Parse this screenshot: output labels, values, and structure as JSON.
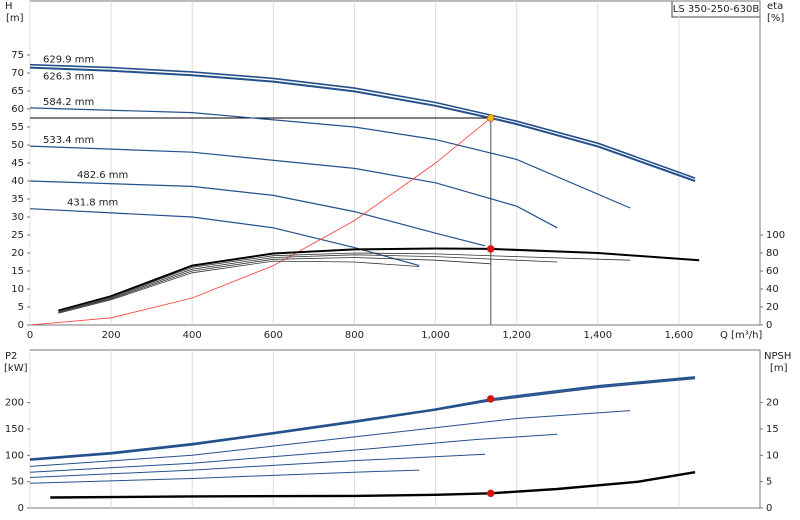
{
  "chart_data": [
    {
      "type": "line",
      "title": "LS 350-250-630B",
      "ylabel": "H",
      "yunit": "[m]",
      "y2label": "eta",
      "y2unit": "[%]",
      "xlabel": "Q [m³/h]",
      "xlim": [
        0,
        1800
      ],
      "xticks": [
        0,
        200,
        400,
        600,
        800,
        {
          "value": 1000,
          "label": "1,000"
        },
        {
          "value": 1200,
          "label": "1,200"
        },
        {
          "value": 1400,
          "label": "1,400"
        },
        {
          "value": 1600,
          "label": "1,600"
        }
      ],
      "ylim": [
        0,
        90
      ],
      "yticks": [
        0,
        5,
        10,
        15,
        20,
        25,
        30,
        35,
        40,
        45,
        50,
        55,
        60,
        65,
        70,
        75
      ],
      "y2lim": [
        0,
        360
      ],
      "y2ticks": [
        0,
        20,
        40,
        60,
        80,
        100
      ],
      "grid": "x",
      "series": [
        {
          "name": "629.9 mm",
          "color": "#24508c",
          "width": 1.6,
          "x": [
            0,
            200,
            400,
            600,
            800,
            1000,
            1136,
            1200,
            1400,
            1640
          ],
          "values": [
            72.3,
            71.5,
            70.3,
            68.5,
            65.8,
            61.8,
            58.3,
            56.6,
            50.5,
            40.8
          ]
        },
        {
          "name": "626.3 mm",
          "color": "#24508c",
          "width": 2,
          "x": [
            0,
            200,
            400,
            600,
            800,
            1000,
            1136,
            1200,
            1400,
            1640
          ],
          "values": [
            71.5,
            70.6,
            69.4,
            67.6,
            64.9,
            60.9,
            57.5,
            55.8,
            49.6,
            40
          ]
        },
        {
          "name": "584.2 mm",
          "color": "#24508c",
          "width": 1.2,
          "x": [
            0,
            400,
            800,
            1000,
            1200,
            1480
          ],
          "values": [
            60.3,
            59,
            55,
            51.5,
            46,
            32.5
          ]
        },
        {
          "name": "533.4 mm",
          "color": "#24508c",
          "width": 1.2,
          "x": [
            0,
            400,
            800,
            1000,
            1200,
            1300
          ],
          "values": [
            49.7,
            48,
            43.5,
            39.5,
            33,
            27
          ]
        },
        {
          "name": "482.6 mm",
          "color": "#24508c",
          "width": 1.2,
          "x": [
            0,
            400,
            600,
            800,
            1000,
            1122
          ],
          "values": [
            40,
            38.5,
            36,
            31.5,
            25.5,
            22
          ]
        },
        {
          "name": "431.8 mm",
          "color": "#24508c",
          "width": 1.2,
          "x": [
            0,
            400,
            600,
            800,
            960
          ],
          "values": [
            32.3,
            30,
            27,
            21.5,
            16.5
          ]
        },
        {
          "color": "#ff3b3b",
          "width": 0.8,
          "x": [
            0,
            200,
            400,
            600,
            800,
            1000,
            1136
          ],
          "values": [
            0,
            2,
            7.5,
            16.5,
            29,
            45,
            57.5
          ]
        },
        {
          "axis": "y2",
          "color": "#000000",
          "width": 2,
          "x": [
            70,
            200,
            400,
            600,
            800,
            1000,
            1136,
            1400,
            1650
          ],
          "values": [
            16,
            32,
            66,
            79.4,
            84,
            85,
            84.5,
            80,
            72
          ]
        },
        {
          "axis": "y2",
          "color": "#333333",
          "width": 0.8,
          "x": [
            70,
            200,
            400,
            600,
            800,
            1000,
            1200,
            1480
          ],
          "values": [
            15,
            31,
            64,
            77,
            80,
            79,
            76,
            72
          ]
        },
        {
          "axis": "y2",
          "color": "#333333",
          "width": 0.8,
          "x": [
            70,
            200,
            400,
            600,
            800,
            1000,
            1300
          ],
          "values": [
            14,
            30,
            62,
            75,
            78,
            76,
            70
          ]
        },
        {
          "axis": "y2",
          "color": "#333333",
          "width": 0.8,
          "x": [
            70,
            200,
            400,
            600,
            800,
            1000,
            1136
          ],
          "values": [
            14,
            29,
            60,
            73,
            75,
            72,
            68
          ]
        },
        {
          "axis": "y2",
          "color": "#333333",
          "width": 0.8,
          "x": [
            70,
            200,
            400,
            600,
            800,
            960
          ],
          "values": [
            13,
            28,
            58,
            71,
            70,
            65
          ]
        }
      ],
      "markers": [
        {
          "x": 1136,
          "y": 57.5,
          "color": "#f5b800"
        },
        {
          "x": 1136,
          "y": 84.5,
          "axis": "y2",
          "color": "#e01010"
        }
      ]
    },
    {
      "type": "line",
      "ylabel": "P2",
      "yunit": "[kW]",
      "y2label": "NPSH",
      "y2unit": "[m]",
      "xlim": [
        0,
        1800
      ],
      "xticks": [
        0,
        200,
        400,
        600,
        800,
        1000,
        1200,
        1400,
        1600
      ],
      "ylim": [
        0,
        300
      ],
      "yticks": [
        0,
        50,
        100,
        150,
        200
      ],
      "y2lim": [
        0,
        30
      ],
      "y2ticks": [
        0,
        5,
        10,
        15,
        20
      ],
      "grid": "x",
      "series": [
        {
          "color": "#24508c",
          "width": 1.6,
          "x": [
            0,
            200,
            400,
            600,
            800,
            1000,
            1136,
            1400,
            1640
          ],
          "values": [
            93,
            105,
            122,
            143,
            165,
            188,
            207,
            232,
            249
          ]
        },
        {
          "color": "#24508c",
          "width": 1.6,
          "x": [
            0,
            200,
            400,
            600,
            800,
            1000,
            1136,
            1400,
            1640
          ],
          "values": [
            91,
            103,
            120,
            141,
            163,
            186,
            204,
            229,
            246
          ]
        },
        {
          "color": "#24508c",
          "width": 1,
          "x": [
            0,
            400,
            800,
            1200,
            1480
          ],
          "values": [
            79,
            100,
            135,
            170,
            185
          ]
        },
        {
          "color": "#24508c",
          "width": 1,
          "x": [
            0,
            400,
            800,
            1100,
            1300
          ],
          "values": [
            68,
            85,
            110,
            130,
            140
          ]
        },
        {
          "color": "#24508c",
          "width": 1,
          "x": [
            0,
            400,
            800,
            1122
          ],
          "values": [
            58,
            72,
            90,
            102
          ]
        },
        {
          "color": "#24508c",
          "width": 1,
          "x": [
            0,
            400,
            800,
            960
          ],
          "values": [
            47,
            56,
            68,
            72
          ]
        },
        {
          "axis": "y2",
          "color": "#000000",
          "width": 2.4,
          "x": [
            50,
            400,
            800,
            1000,
            1136,
            1300,
            1500,
            1640
          ],
          "values": [
            2,
            2.2,
            2.3,
            2.5,
            2.8,
            3.6,
            5,
            6.8
          ]
        }
      ],
      "markers": [
        {
          "x": 1136,
          "y": 207,
          "color": "#e01010"
        },
        {
          "x": 1136,
          "y": 2.8,
          "axis": "y2",
          "color": "#e01010"
        }
      ]
    }
  ]
}
